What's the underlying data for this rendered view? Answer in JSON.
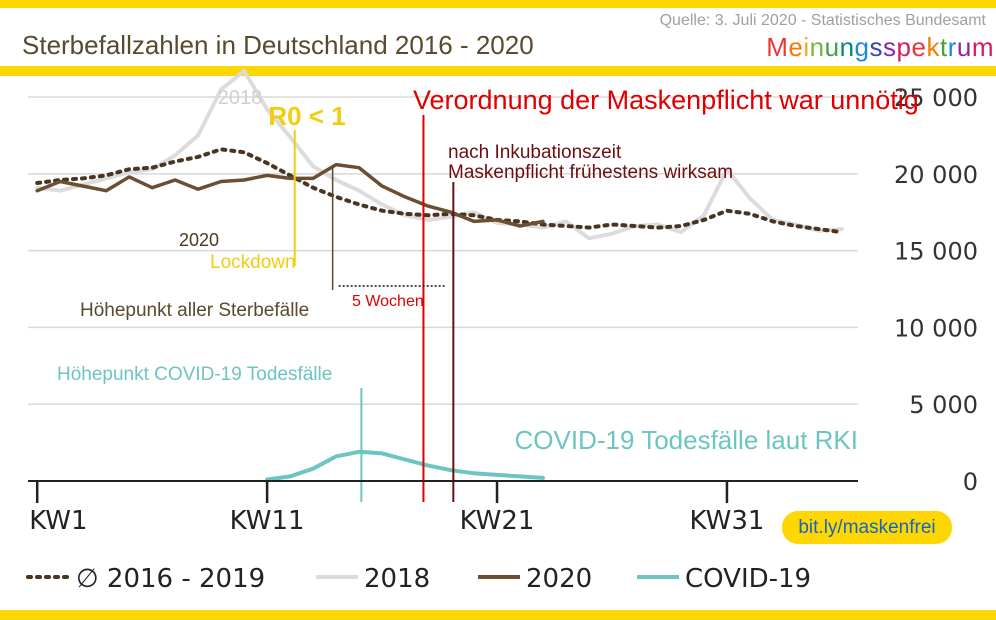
{
  "header": {
    "title": "Sterbefallzahlen in Deutschland 2016 - 2020",
    "source": "Quelle: 3. Juli 2020 - Statistisches Bundesamt",
    "brand": "Meinungsspektrum",
    "brand_colors": [
      "#E53935",
      "#F57C00",
      "#F9A825",
      "#7CB342",
      "#43A047",
      "#00897B",
      "#1E88E5",
      "#3949AB",
      "#8E24AA",
      "#D81B60",
      "#E53935",
      "#F57C00",
      "#43A047",
      "#1E88E5",
      "#8E24AA",
      "#D81B60"
    ]
  },
  "colors": {
    "banner": "#FFD700",
    "avg": "#4a3620",
    "y2018": "#dcdcdc",
    "y2020": "#6b4f33",
    "covid": "#6cc5c1",
    "red": "#e00000",
    "darkred": "#6b0f0f",
    "lockdown": "#f2cc0f",
    "axis": "#222222"
  },
  "annotations": {
    "label_2018": "2018",
    "r0": "R0 < 1",
    "verordnung": "Verordnung der Maskenpflicht war unnötig",
    "inkubation_1": "nach Inkubationszeit",
    "inkubation_2": "Maskenpflicht frühestens wirksam",
    "label_2020": "2020",
    "lockdown": "Lockdown",
    "hoehepunkt_sterbe": "Höhepunkt aller Sterbefälle",
    "fuenf_wochen": "5 Wochen",
    "hoehepunkt_covid": "Höhepunkt COVID-19 Todesfälle",
    "covid_rki": "COVID-19 Todesfälle laut RKI",
    "url": "bit.ly/maskenfrei"
  },
  "legend": [
    {
      "key": "avg",
      "label": "∅ 2016 - 2019"
    },
    {
      "key": "y2018",
      "label": "2018"
    },
    {
      "key": "y2020",
      "label": "2020"
    },
    {
      "key": "covid",
      "label": "COVID-19"
    }
  ],
  "chart_data": {
    "type": "line",
    "title": "Sterbefallzahlen in Deutschland 2016 - 2020",
    "x_tick_labels": [
      "KW1",
      "KW11",
      "KW21",
      "KW31"
    ],
    "x_ticks": [
      1,
      11,
      21,
      31
    ],
    "xlim": [
      0.6,
      36.7
    ],
    "y_ticks": [
      0,
      5000,
      10000,
      15000,
      20000,
      25000
    ],
    "y_tick_labels": [
      "0",
      "5 000",
      "10 000",
      "15 000",
      "20 000",
      "25 000"
    ],
    "ylim": [
      0,
      26500
    ],
    "grid": true,
    "series": [
      {
        "name": "∅ 2016 - 2019",
        "key": "avg",
        "x": [
          1,
          2,
          3,
          4,
          5,
          6,
          7,
          8,
          9,
          10,
          11,
          12,
          13,
          14,
          15,
          16,
          17,
          18,
          19,
          20,
          21,
          22,
          23,
          24,
          25,
          26,
          27,
          28,
          29,
          30,
          31,
          32,
          33,
          34,
          35,
          36
        ],
        "values": [
          19400,
          19600,
          19700,
          19900,
          20300,
          20400,
          20800,
          21100,
          21600,
          21400,
          20700,
          19900,
          19100,
          18500,
          18000,
          17600,
          17400,
          17300,
          17400,
          17300,
          17000,
          16900,
          16700,
          16600,
          16500,
          16700,
          16600,
          16500,
          16600,
          17000,
          17600,
          17400,
          16900,
          16600,
          16400,
          16200
        ]
      },
      {
        "name": "2018",
        "key": "y2018",
        "x": [
          1,
          2,
          3,
          4,
          5,
          6,
          7,
          8,
          9,
          10,
          11,
          12,
          13,
          14,
          15,
          16,
          17,
          18,
          19,
          20,
          21,
          22,
          23,
          24,
          25,
          26,
          27,
          28,
          29,
          30,
          31,
          32,
          33,
          34,
          35,
          36
        ],
        "values": [
          19100,
          18900,
          19300,
          19700,
          20100,
          20300,
          21200,
          22500,
          25500,
          26700,
          24200,
          22400,
          20500,
          19600,
          18900,
          18000,
          17300,
          17000,
          17200,
          17500,
          16800,
          16700,
          16500,
          16900,
          15800,
          16100,
          16600,
          16700,
          16200,
          17300,
          20300,
          18400,
          17000,
          16700,
          16300,
          16400
        ]
      },
      {
        "name": "2020",
        "key": "y2020",
        "x": [
          1,
          2,
          3,
          4,
          5,
          6,
          7,
          8,
          9,
          10,
          11,
          12,
          13,
          14,
          15,
          16,
          17,
          18,
          19,
          20,
          21,
          22,
          23
        ],
        "values": [
          18900,
          19500,
          19200,
          18900,
          19800,
          19100,
          19600,
          19000,
          19500,
          19600,
          19900,
          19700,
          19700,
          20600,
          20400,
          19200,
          18500,
          17900,
          17500,
          16900,
          17000,
          16600,
          16900
        ]
      },
      {
        "name": "COVID-19",
        "key": "covid",
        "x": [
          11,
          12,
          13,
          14,
          15,
          16,
          17,
          18,
          19,
          20,
          21,
          22,
          23
        ],
        "values": [
          100,
          300,
          800,
          1600,
          1900,
          1800,
          1400,
          1000,
          700,
          500,
          400,
          300,
          200
        ]
      }
    ],
    "markers": [
      {
        "key": "lockdown",
        "x": 12.2
      },
      {
        "key": "hoehepunkt_sterbe",
        "x": 13.85
      },
      {
        "key": "hoehepunkt_covid",
        "x": 15.1
      },
      {
        "key": "verordnung",
        "x": 17.8
      },
      {
        "key": "inkubation",
        "x": 19.1
      }
    ]
  }
}
